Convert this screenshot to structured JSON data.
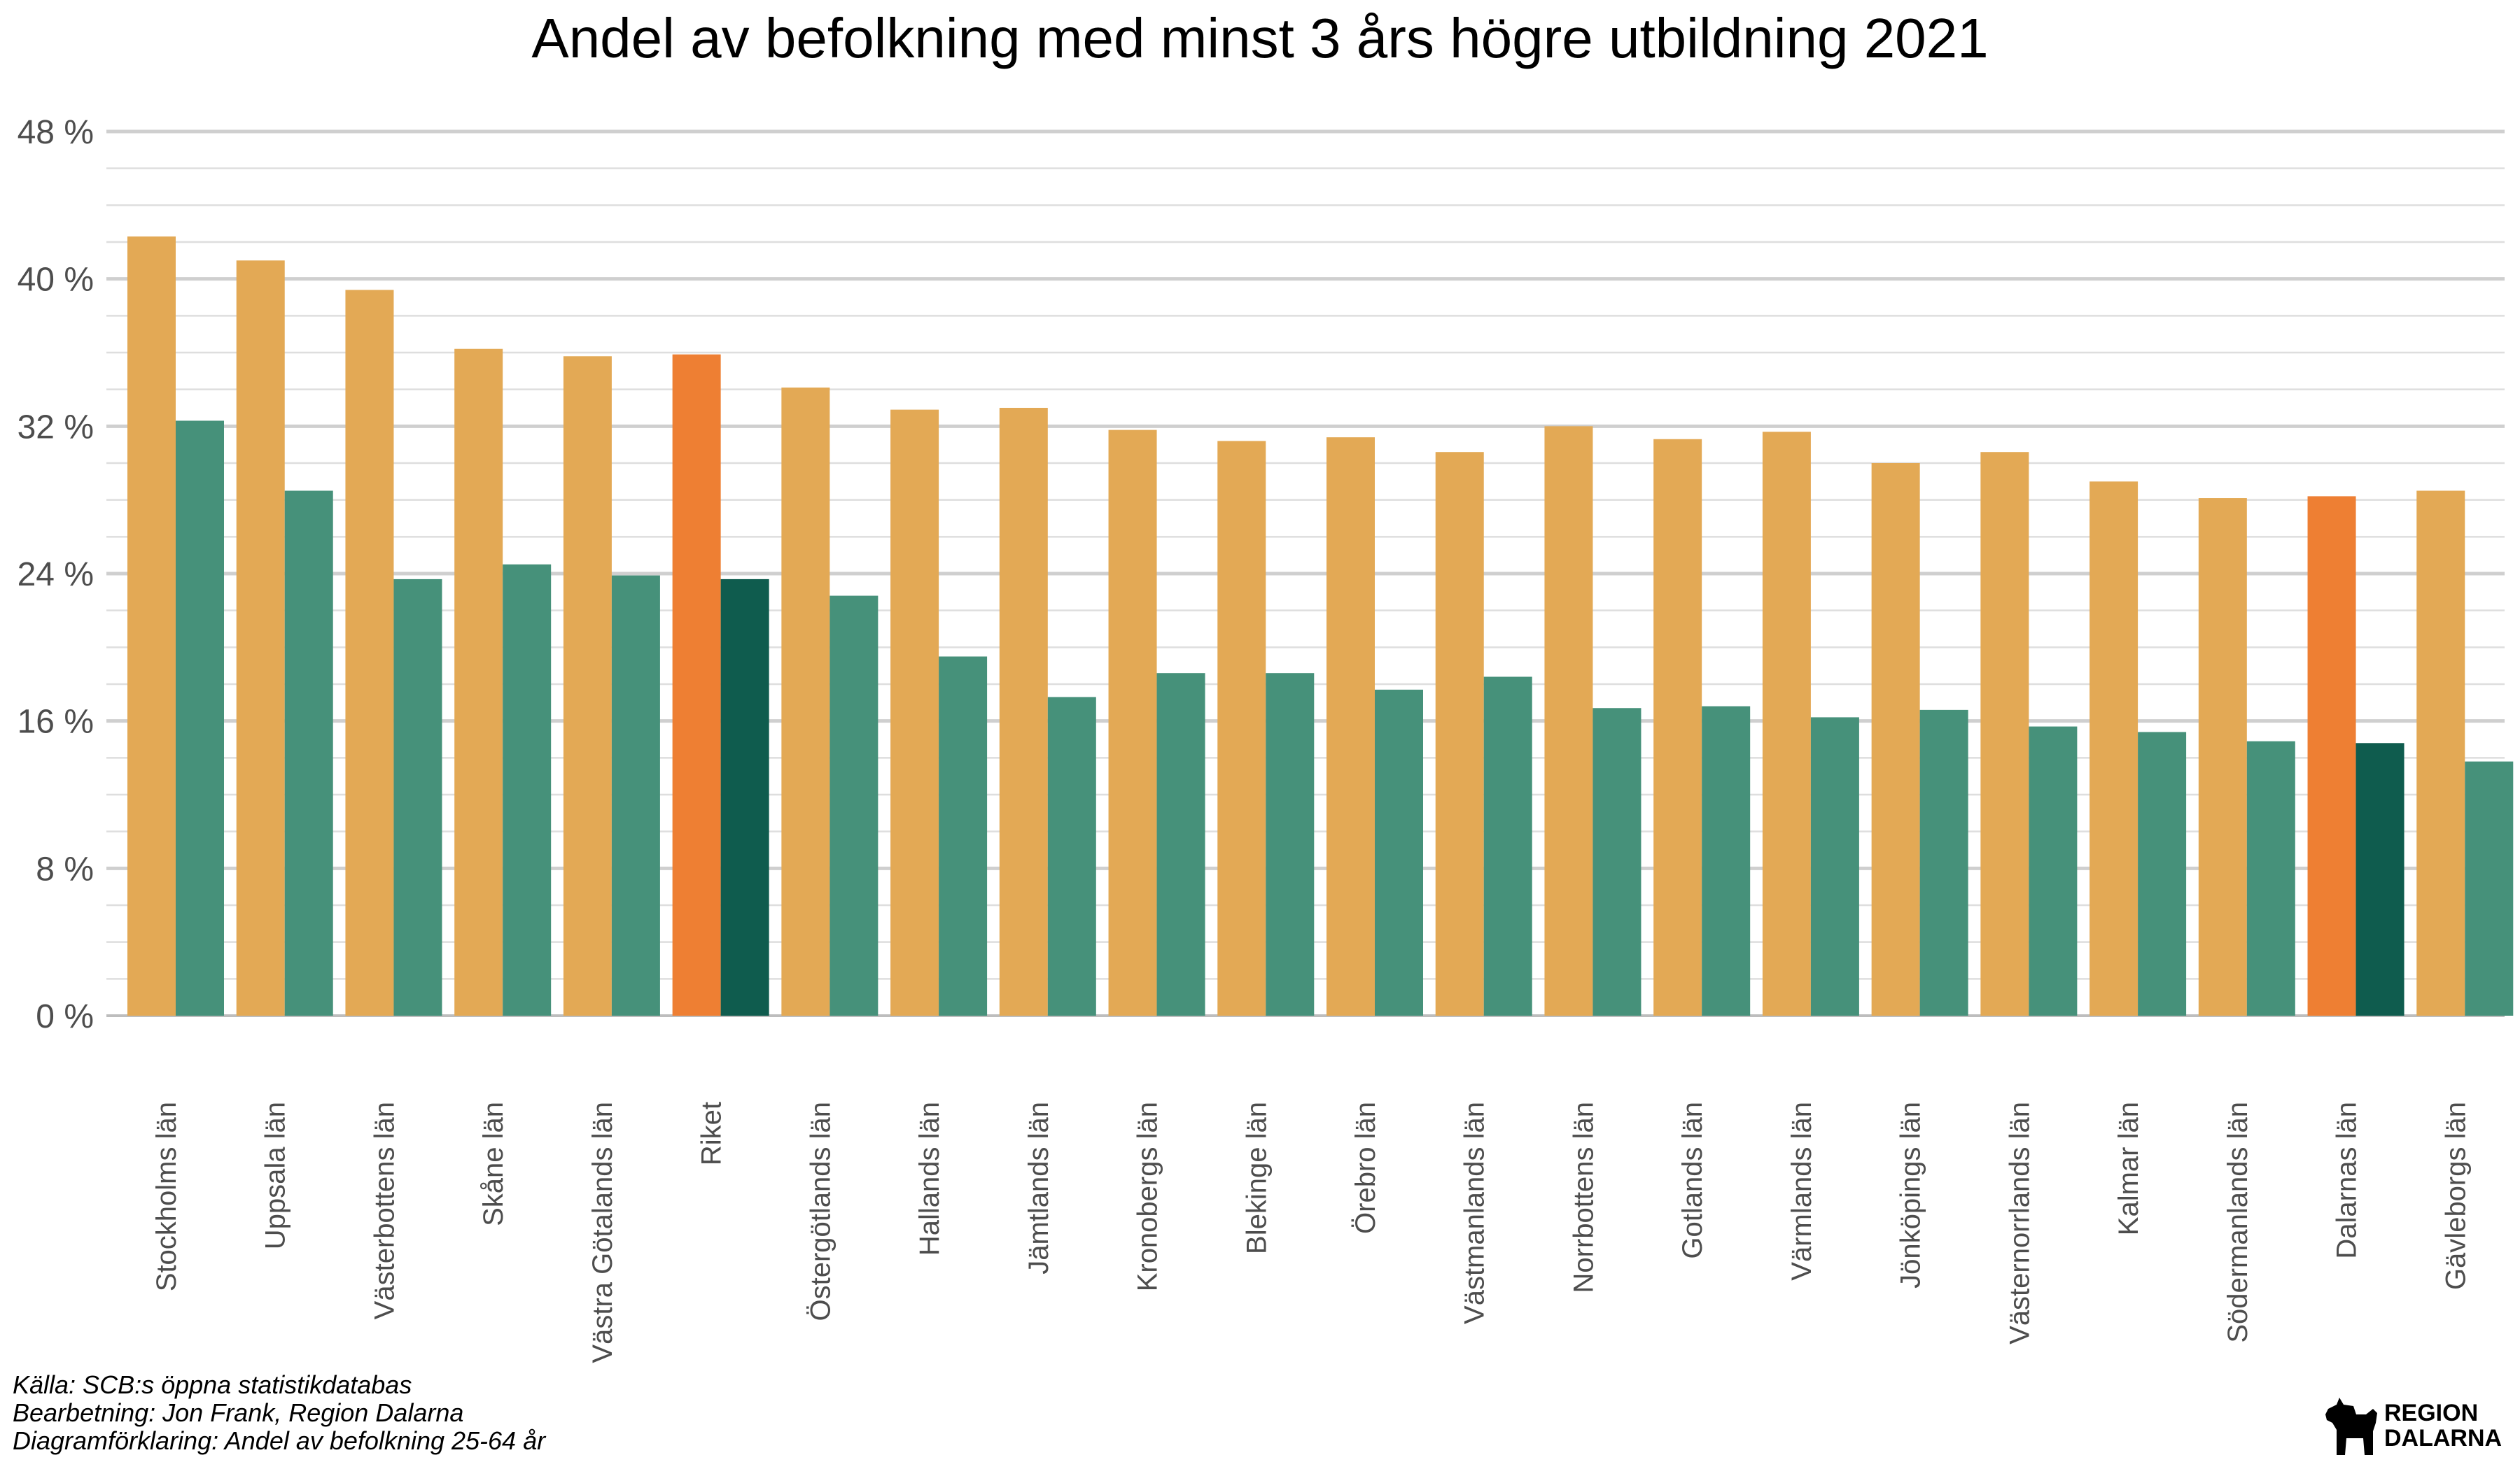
{
  "chart_data": {
    "type": "bar",
    "title": "Andel av befolkning med minst 3 års högre utbildning 2021",
    "xlabel": "",
    "ylabel": "",
    "ylim": [
      0,
      48
    ],
    "yticks": [
      0,
      8,
      16,
      24,
      32,
      40,
      48
    ],
    "ytick_labels": [
      "0 %",
      "8 %",
      "16 %",
      "24 %",
      "32 %",
      "40 %",
      "48 %"
    ],
    "grid": true,
    "legend": "none",
    "categories": [
      "Stockholms län",
      "Uppsala län",
      "Västerbottens län",
      "Skåne län",
      "Västra Götalands län",
      "Riket",
      "Östergötlands län",
      "Hallands län",
      "Jämtlands län",
      "Kronobergs län",
      "Blekinge län",
      "Örebro län",
      "Västmanlands län",
      "Norrbottens län",
      "Gotlands län",
      "Värmlands län",
      "Jönköpings län",
      "Västernorrlands län",
      "Kalmar län",
      "Södermanlands län",
      "Dalarnas län",
      "Gävleborgs län"
    ],
    "series": [
      {
        "values": [
          42.3,
          41.0,
          39.4,
          36.2,
          35.8,
          35.9,
          34.1,
          32.9,
          33.0,
          31.8,
          31.2,
          31.4,
          30.6,
          32.0,
          31.3,
          31.7,
          30.0,
          30.6,
          29.0,
          28.1,
          28.2,
          28.5
        ]
      },
      {
        "values": [
          32.3,
          28.5,
          23.7,
          24.5,
          23.9,
          23.7,
          22.8,
          19.5,
          17.3,
          18.6,
          18.6,
          17.7,
          18.4,
          16.7,
          16.8,
          16.2,
          16.6,
          15.7,
          15.4,
          14.9,
          14.8,
          13.8
        ]
      }
    ],
    "colors": {
      "series_0": "#e3a955",
      "series_1": "#46917a",
      "highlight_series_0": "#ee7f33",
      "highlight_series_1": "#0f5c4e"
    },
    "highlighted_categories": [
      "Riket",
      "Dalarnas län"
    ]
  },
  "caption": {
    "lines": [
      "Källa: SCB:s öppna statistikdatabas",
      "Bearbetning: Jon Frank, Region Dalarna",
      "Diagramförklaring: Andel av befolkning 25-64 år"
    ]
  },
  "logo": {
    "line1": "REGION",
    "line2": "DALARNA",
    "icon": "dala-horse-icon"
  }
}
